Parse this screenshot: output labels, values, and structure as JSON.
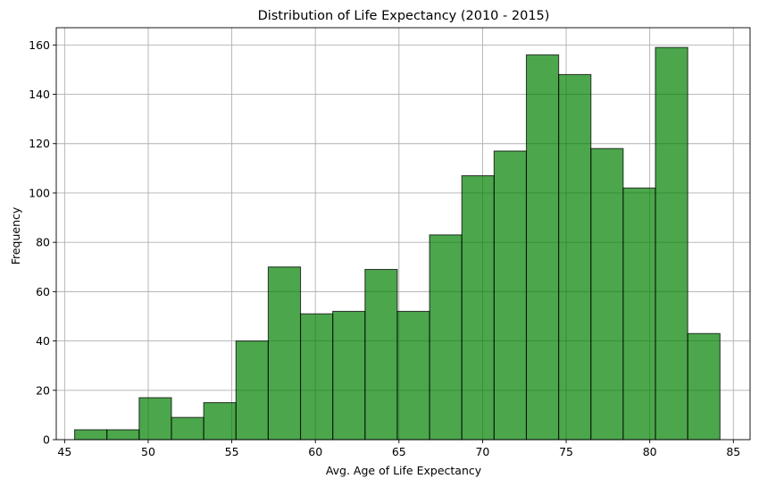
{
  "chart_data": {
    "type": "bar",
    "title": "Distribution of Life Expectancy (2010 - 2015)",
    "xlabel": "Avg. Age of Life Expectancy",
    "ylabel": "Frequency",
    "bin_edges": [
      45.6,
      47.53,
      49.46,
      51.39,
      53.32,
      55.25,
      57.18,
      59.11,
      61.04,
      62.97,
      64.9,
      66.83,
      68.76,
      70.69,
      72.62,
      74.55,
      76.48,
      78.41,
      80.34,
      82.27,
      84.2
    ],
    "values": [
      4,
      4,
      17,
      9,
      15,
      40,
      70,
      51,
      52,
      69,
      52,
      83,
      107,
      117,
      156,
      148,
      118,
      102,
      159,
      43
    ],
    "xlim": [
      44.5,
      86.0
    ],
    "ylim": [
      0,
      167
    ],
    "xticks": [
      45,
      50,
      55,
      60,
      65,
      70,
      75,
      80,
      85
    ],
    "yticks": [
      0,
      20,
      40,
      60,
      80,
      100,
      120,
      140,
      160
    ],
    "grid": true,
    "bar_color": "#008000",
    "edge_color": "#000000"
  }
}
